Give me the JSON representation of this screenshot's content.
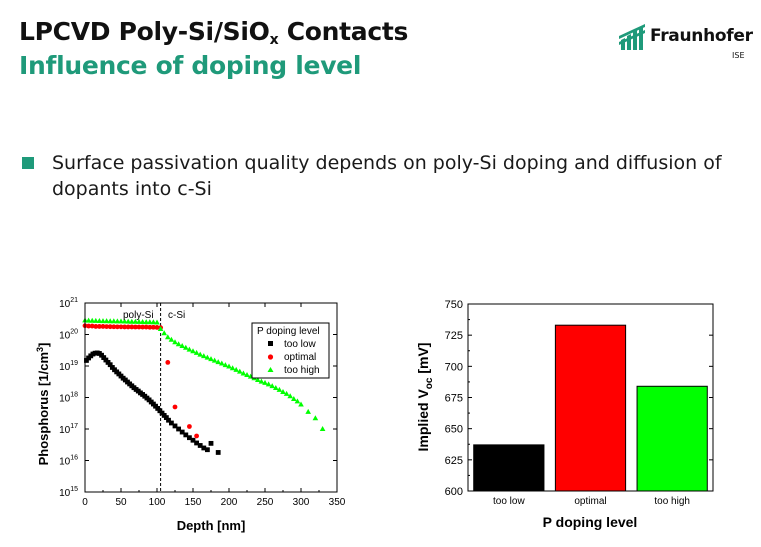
{
  "header": {
    "title_main": "LPCVD Poly-Si/SiO",
    "title_sub": "x",
    "title_end": " Contacts",
    "subtitle": "Influence of doping level"
  },
  "logo": {
    "name": "Fraunhofer",
    "sub": "ISE"
  },
  "body": {
    "bullet_text": "Surface passivation quality depends on poly-Si doping and diffusion of dopants into c-Si"
  },
  "colors": {
    "accent": "#1f9a7a",
    "too_low": "#000000",
    "optimal": "#ff0000",
    "too_high": "#00ff00"
  },
  "chart_data": [
    {
      "type": "scatter",
      "title": "",
      "xlabel": "Depth [nm]",
      "ylabel_main": "Phosphorus [1/cm",
      "ylabel_sup": "3",
      "ylabel_end": "]",
      "xlim": [
        0,
        350
      ],
      "ylim_log10": [
        15,
        21
      ],
      "y_scale": "log",
      "x_ticks": [
        "0",
        "50",
        "100",
        "150",
        "200",
        "250",
        "300",
        "350"
      ],
      "y_ticks_exp": [
        "15",
        "16",
        "17",
        "18",
        "19",
        "20",
        "21"
      ],
      "y_tick_base": "10",
      "region_labels": {
        "poly": "poly-Si",
        "csi": "c-Si"
      },
      "interface_x": 105,
      "legend_title": "P doping level",
      "legend_position": "top-right",
      "series": [
        {
          "name": "too low",
          "color": "#000000",
          "marker": "square",
          "x": [
            2,
            5,
            8,
            11,
            14,
            17,
            20,
            23,
            26,
            29,
            32,
            35,
            38,
            41,
            44,
            47,
            50,
            53,
            56,
            59,
            62,
            65,
            68,
            71,
            74,
            77,
            80,
            83,
            86,
            89,
            92,
            95,
            98,
            101,
            104,
            107,
            110,
            113,
            116,
            120,
            125,
            130,
            135,
            140,
            145,
            150,
            155,
            160,
            165,
            170,
            175,
            185
          ],
          "y": [
            1.5e+19,
            1.8e+19,
            2.1e+19,
            2.4e+19,
            2.55e+19,
            2.6e+19,
            2.5e+19,
            2.2e+19,
            1.85e+19,
            1.55e+19,
            1.3e+19,
            1.1e+19,
            9e+18,
            7.6e+18,
            6.5e+18,
            5.6e+18,
            4.8e+18,
            4.1e+18,
            3.6e+18,
            3.1e+18,
            2.7e+18,
            2.35e+18,
            2.05e+18,
            1.8e+18,
            1.6e+18,
            1.4e+18,
            1.25e+18,
            1.1e+18,
            9.6e+17,
            8.4e+17,
            7.2e+17,
            6.2e+17,
            5.3e+17,
            4.5e+17,
            3.8e+17,
            3.2e+17,
            2.7e+17,
            2.3e+17,
            1.9e+17,
            1.55e+17,
            1.25e+17,
            1e+17,
            8e+16,
            6.5e+16,
            5.3e+16,
            4.4e+16,
            3.6e+16,
            3e+16,
            2.5e+16,
            2.2e+16,
            3.5e+16,
            1.8e+16
          ]
        },
        {
          "name": "optimal",
          "color": "#ff0000",
          "marker": "circle",
          "x": [
            0,
            5,
            10,
            15,
            20,
            25,
            30,
            35,
            40,
            45,
            50,
            55,
            60,
            65,
            70,
            75,
            80,
            85,
            90,
            95,
            100,
            105,
            115,
            125,
            145,
            155
          ],
          "y": [
            1.9e+20,
            1.85e+20,
            1.85e+20,
            1.8e+20,
            1.8e+20,
            1.8e+20,
            1.78e+20,
            1.77e+20,
            1.76e+20,
            1.75e+20,
            1.75e+20,
            1.74e+20,
            1.74e+20,
            1.74e+20,
            1.73e+20,
            1.73e+20,
            1.72e+20,
            1.72e+20,
            1.7e+20,
            1.7e+20,
            1.68e+20,
            1.65e+20,
            1.3e+19,
            5e+17,
            1.2e+17,
            6e+16
          ]
        },
        {
          "name": "too high",
          "color": "#00ff00",
          "marker": "triangle",
          "x": [
            0,
            5,
            10,
            15,
            20,
            25,
            30,
            35,
            40,
            45,
            50,
            55,
            60,
            65,
            70,
            75,
            80,
            85,
            90,
            95,
            100,
            105,
            110,
            115,
            120,
            125,
            130,
            135,
            140,
            145,
            150,
            155,
            160,
            165,
            170,
            175,
            180,
            185,
            190,
            195,
            200,
            205,
            210,
            215,
            220,
            225,
            230,
            235,
            240,
            245,
            250,
            255,
            260,
            265,
            270,
            275,
            280,
            285,
            290,
            295,
            300,
            310,
            320,
            330
          ],
          "y": [
            2.8e+20,
            2.75e+20,
            2.72e+20,
            2.7e+20,
            2.68e+20,
            2.67e+20,
            2.65e+20,
            2.64e+20,
            2.63e+20,
            2.62e+20,
            2.6e+20,
            2.58e+20,
            2.57e+20,
            2.55e+20,
            2.54e+20,
            2.52e+20,
            2.5e+20,
            2.48e+20,
            2.46e+20,
            2.44e+20,
            2.4e+20,
            1.5e+20,
            1.1e+20,
            8.2e+19,
            6.8e+19,
            5.7e+19,
            4.9e+19,
            4.3e+19,
            3.8e+19,
            3.3e+19,
            2.95e+19,
            2.6e+19,
            2.3e+19,
            2.05e+19,
            1.85e+19,
            1.65e+19,
            1.48e+19,
            1.33e+19,
            1.2e+19,
            1.07e+19,
            9.6e+18,
            8.5e+18,
            7.5e+18,
            6.6e+18,
            5.8e+18,
            5.2e+18,
            4.6e+18,
            4.1e+18,
            3.6e+18,
            3.2e+18,
            2.9e+18,
            2.6e+18,
            2.3e+18,
            2e+18,
            1.75e+18,
            1.5e+18,
            1.3e+18,
            1.1e+18,
            9e+17,
            7.5e+17,
            6e+17,
            3.5e+17,
            2.2e+17,
            1e+17
          ]
        }
      ]
    },
    {
      "type": "bar",
      "title": "",
      "xlabel": "P doping level",
      "ylabel_main": "Implied V",
      "ylabel_sub": "oc",
      "ylabel_end": " [mV]",
      "ylim": [
        600,
        750
      ],
      "y_ticks": [
        600,
        625,
        650,
        675,
        700,
        725,
        750
      ],
      "categories": [
        "too low",
        "optimal",
        "too high"
      ],
      "values": [
        637,
        733,
        684
      ],
      "colors": [
        "#000000",
        "#ff0000",
        "#00ff00"
      ]
    }
  ]
}
